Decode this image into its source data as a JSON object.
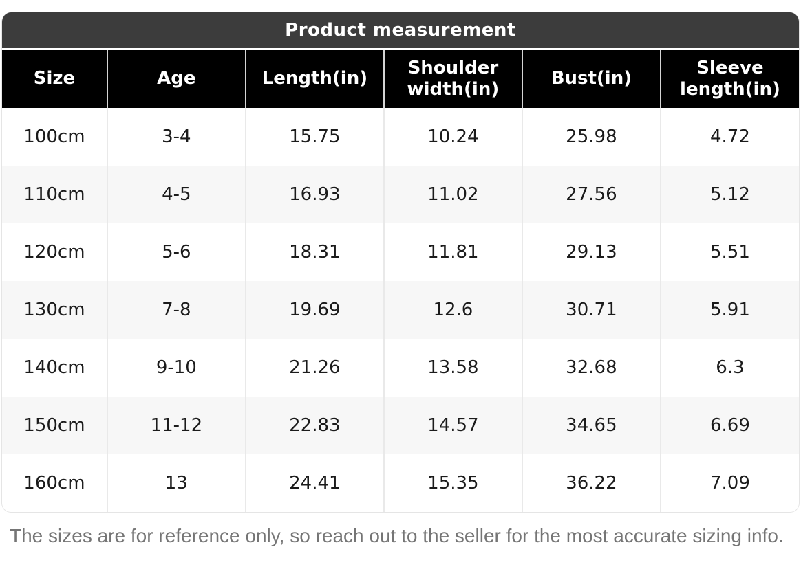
{
  "header": {
    "title": "Product measurement"
  },
  "chart_data": {
    "type": "table",
    "title": "Product measurement",
    "columns": [
      "Size",
      "Age",
      "Length(in)",
      "Shoulder width(in)",
      "Bust(in)",
      "Sleeve length(in)"
    ],
    "rows": [
      [
        "100cm",
        "3-4",
        "15.75",
        "10.24",
        "25.98",
        "4.72"
      ],
      [
        "110cm",
        "4-5",
        "16.93",
        "11.02",
        "27.56",
        "5.12"
      ],
      [
        "120cm",
        "5-6",
        "18.31",
        "11.81",
        "29.13",
        "5.51"
      ],
      [
        "130cm",
        "7-8",
        "19.69",
        "12.6",
        "30.71",
        "5.91"
      ],
      [
        "140cm",
        "9-10",
        "21.26",
        "13.58",
        "32.68",
        "6.3"
      ],
      [
        "150cm",
        "11-12",
        "22.83",
        "14.57",
        "34.65",
        "6.69"
      ],
      [
        "160cm",
        "13",
        "24.41",
        "15.35",
        "36.22",
        "7.09"
      ]
    ]
  },
  "footnote": "The sizes are for reference only, so reach out to the seller for the most accurate sizing info.",
  "colors": {
    "title_bar_bg": "#3c3c3c",
    "header_bg": "#000000",
    "header_text": "#ffffff",
    "row_alt_bg": "#f7f7f7",
    "body_text": "#1b1b1b",
    "divider_header": "#d4d4d4",
    "divider_body": "#e9e9e9",
    "footnote_text": "#757575",
    "card_border": "#e5e5e5"
  }
}
